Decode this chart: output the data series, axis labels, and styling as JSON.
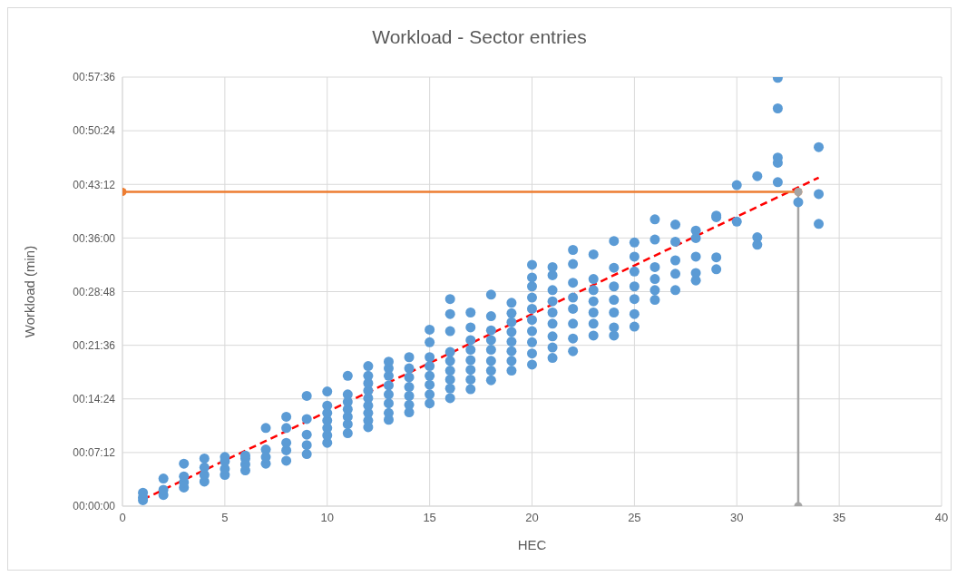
{
  "chart_data": {
    "type": "scatter",
    "title": "Workload - Sector entries",
    "xlabel": "HEC",
    "ylabel": "Workload (min)",
    "xlim": [
      0,
      40
    ],
    "xticks": [
      0,
      5,
      10,
      15,
      20,
      25,
      30,
      35,
      40
    ],
    "ylim": [
      0,
      57.6
    ],
    "yticks": [
      {
        "value": 0,
        "label": "00:00:00"
      },
      {
        "value": 7.2,
        "label": "00:07:12"
      },
      {
        "value": 14.4,
        "label": "00:14:24"
      },
      {
        "value": 21.6,
        "label": "00:21:36"
      },
      {
        "value": 28.8,
        "label": "00:28:48"
      },
      {
        "value": 36,
        "label": "00:36:00"
      },
      {
        "value": 43.2,
        "label": "00:43:12"
      },
      {
        "value": 50.4,
        "label": "00:50:24"
      },
      {
        "value": 57.6,
        "label": "00:57:36"
      }
    ],
    "grid": true,
    "series": [
      {
        "marker": "circle",
        "color": "#5b9bd5",
        "x": [
          1,
          1,
          1,
          2,
          2,
          2,
          3,
          3,
          3,
          3,
          4,
          4,
          4,
          4,
          5,
          5,
          5,
          5,
          6,
          6,
          6,
          6,
          7,
          7,
          7,
          7,
          8,
          8,
          8,
          8,
          8,
          9,
          9,
          9,
          9,
          9,
          10,
          10,
          10,
          10,
          10,
          10,
          10,
          11,
          11,
          11,
          11,
          11,
          11,
          11,
          12,
          12,
          12,
          12,
          12,
          12,
          12,
          12,
          12,
          13,
          13,
          13,
          13,
          13,
          13,
          13,
          13,
          14,
          14,
          14,
          14,
          14,
          14,
          14,
          15,
          15,
          15,
          15,
          15,
          15,
          15,
          15,
          16,
          16,
          16,
          16,
          16,
          16,
          16,
          16,
          16,
          17,
          17,
          17,
          17,
          17,
          17,
          17,
          17,
          18,
          18,
          18,
          18,
          18,
          18,
          18,
          18,
          19,
          19,
          19,
          19,
          19,
          19,
          19,
          19,
          20,
          20,
          20,
          20,
          20,
          20,
          20,
          20,
          20,
          20,
          21,
          21,
          21,
          21,
          21,
          21,
          21,
          21,
          21,
          22,
          22,
          22,
          22,
          22,
          22,
          22,
          22,
          23,
          23,
          23,
          23,
          23,
          23,
          23,
          24,
          24,
          24,
          24,
          24,
          24,
          24,
          25,
          25,
          25,
          25,
          25,
          25,
          25,
          26,
          26,
          26,
          26,
          26,
          26,
          27,
          27,
          27,
          27,
          27,
          28,
          28,
          28,
          28,
          28,
          29,
          29,
          29,
          29,
          30,
          30,
          31,
          31,
          31,
          32,
          32,
          32,
          32,
          32,
          33,
          34,
          34,
          34
        ],
        "values": [
          0.8,
          1.2,
          1.8,
          1.5,
          2.2,
          3.7,
          2.5,
          3.2,
          4.0,
          5.7,
          3.3,
          4.2,
          5.2,
          6.4,
          4.2,
          5.0,
          6.0,
          6.6,
          4.8,
          5.6,
          6.4,
          6.8,
          5.7,
          6.6,
          7.6,
          10.5,
          6.1,
          7.5,
          8.5,
          10.5,
          12.0,
          7.0,
          8.2,
          9.6,
          11.7,
          14.8,
          8.5,
          9.5,
          10.5,
          11.5,
          12.5,
          13.5,
          15.4,
          9.8,
          11,
          12,
          13,
          14,
          15,
          17.5,
          10.6,
          11.5,
          12.5,
          13.5,
          14.5,
          15.5,
          16.5,
          17.5,
          18.8,
          11.6,
          12.5,
          13.8,
          15,
          16.2,
          17.5,
          18.5,
          19.4,
          12.6,
          13.6,
          14.8,
          16,
          17.3,
          18.5,
          20.0,
          13.8,
          15,
          16.3,
          17.5,
          18.8,
          20,
          22,
          23.7,
          14.5,
          15.8,
          17,
          18.2,
          19.5,
          20.7,
          23.5,
          25.8,
          27.8,
          15.7,
          17,
          18.3,
          19.6,
          21,
          22.3,
          24,
          26,
          16.9,
          18.2,
          19.5,
          21,
          22.3,
          23.6,
          25.5,
          28.4,
          18.2,
          19.5,
          20.8,
          22.1,
          23.4,
          24.7,
          25.9,
          27.3,
          19,
          20.5,
          22,
          23.5,
          25,
          26.5,
          28,
          29.5,
          30.7,
          32.4,
          19.9,
          21.3,
          22.8,
          24.5,
          26,
          27.5,
          29,
          31,
          32.1,
          20.8,
          22.5,
          24.5,
          26.5,
          28,
          30,
          32.5,
          34.4,
          22.9,
          24.5,
          26,
          27.5,
          29,
          30.5,
          33.8,
          22.9,
          24,
          26,
          27.7,
          29.5,
          32,
          35.6,
          24.1,
          25.8,
          27.8,
          29.5,
          31.5,
          33.5,
          35.4,
          27.7,
          29.0,
          30.5,
          32.1,
          35.8,
          38.5,
          29.0,
          31.2,
          33,
          35.5,
          37.8,
          30.3,
          31.3,
          33.5,
          36.0,
          37.0,
          31.8,
          33.4,
          38.8,
          39.0,
          38.2,
          43.1,
          35.1,
          36.1,
          44.3,
          43.5,
          46.1,
          46.8,
          53.4,
          57.5,
          40.8,
          37.9,
          41.9,
          48.2
        ]
      },
      {
        "type": "line",
        "marker": "none",
        "line_style": "dashed",
        "color": "#ff0000",
        "x": [
          1,
          34
        ],
        "values": [
          0.9,
          44.1
        ]
      },
      {
        "type": "line",
        "marker": "circle",
        "line_style": "solid",
        "color": "#ed7d31",
        "x": [
          0,
          33
        ],
        "values": [
          42.2,
          42.2
        ]
      },
      {
        "type": "line",
        "marker": "circle",
        "line_style": "solid",
        "color": "#a5a5a5",
        "x": [
          33,
          33
        ],
        "values": [
          0,
          42.2
        ]
      }
    ]
  }
}
